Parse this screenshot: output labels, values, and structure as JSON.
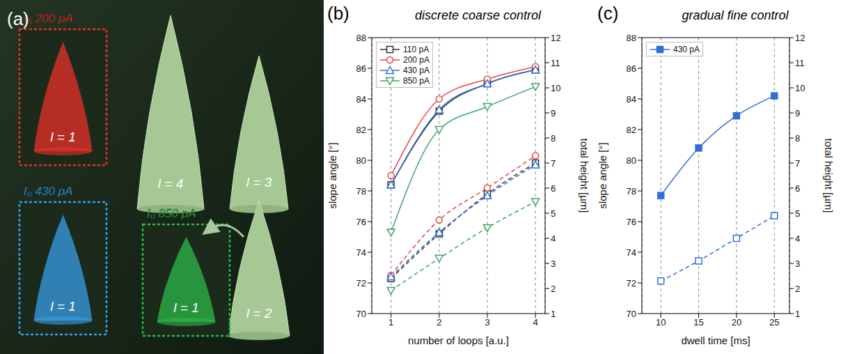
{
  "panel_a": {
    "panel": "(a)",
    "groups": [
      {
        "current": "I₀ 200 pA",
        "color": "#e8302a",
        "cone": "l = 1"
      },
      {
        "current": "I₀ 430 pA",
        "color": "#3a9ee8",
        "cone": "l = 1"
      },
      {
        "current": "I₀ 850 pA",
        "color": "#2eb84a",
        "cone": "l = 1"
      }
    ],
    "cones": [
      "l = 4",
      "l = 3",
      "l = 2"
    ]
  },
  "chart_data": [
    {
      "type": "line",
      "panel": "(b)",
      "title": "discrete coarse control",
      "x_label": "number of loops [a.u.]",
      "y_label": "slope angle [°]",
      "y2_label": "total height [µm]",
      "x": [
        1,
        2,
        3,
        4
      ],
      "xlim": [
        0.6,
        4.2
      ],
      "xticks": [
        1,
        2,
        3,
        4
      ],
      "ylim": [
        70,
        88
      ],
      "yticks": [
        70,
        72,
        74,
        76,
        78,
        80,
        82,
        84,
        86,
        88
      ],
      "y2lim": [
        1,
        12
      ],
      "y2ticks": [
        1,
        2,
        3,
        4,
        5,
        6,
        7,
        8,
        9,
        10,
        11,
        12
      ],
      "grid": true,
      "legend": "top-left",
      "series": [
        {
          "name": "110 pA",
          "color": "#333333",
          "marker": "square",
          "line_style": "solid",
          "values": [
            78.4,
            83.2,
            85.0,
            85.9
          ]
        },
        {
          "name": "200 pA",
          "color": "#e8403a",
          "marker": "circle",
          "line_style": "solid",
          "values": [
            79.0,
            84.0,
            85.3,
            86.1
          ]
        },
        {
          "name": "430 pA",
          "color": "#2f6fd6",
          "marker": "triangle",
          "line_style": "solid",
          "values": [
            78.4,
            83.3,
            85.0,
            85.9
          ]
        },
        {
          "name": "850 pA",
          "color": "#3aa864",
          "marker": "triangle-down",
          "line_style": "solid",
          "values": [
            75.3,
            82.0,
            83.5,
            84.8
          ]
        },
        {
          "name": "110 pA",
          "color": "#333333",
          "marker": "square",
          "line_style": "dashed",
          "axis": "y2",
          "values": [
            2.4,
            4.18,
            5.77,
            7.0
          ]
        },
        {
          "name": "200 pA",
          "color": "#e8403a",
          "marker": "circle",
          "line_style": "dashed",
          "axis": "y2",
          "values": [
            2.53,
            4.73,
            6.01,
            7.29
          ]
        },
        {
          "name": "430 pA",
          "color": "#2f6fd6",
          "marker": "triangle",
          "line_style": "dashed",
          "axis": "y2",
          "values": [
            2.47,
            4.24,
            5.7,
            6.93
          ]
        },
        {
          "name": "850 pA",
          "color": "#3aa864",
          "marker": "triangle-down",
          "line_style": "dashed",
          "axis": "y2",
          "values": [
            1.92,
            3.2,
            4.42,
            5.46
          ]
        }
      ]
    },
    {
      "type": "line",
      "panel": "(c)",
      "title": "gradual fine control",
      "x_label": "dwell time [ms]",
      "y_label": "slope angle [°]",
      "y2_label": "total height [µm]",
      "x": [
        10,
        15,
        20,
        25
      ],
      "xlim": [
        7.5,
        27
      ],
      "xticks": [
        10,
        15,
        20,
        25
      ],
      "ylim": [
        70,
        88
      ],
      "yticks": [
        70,
        72,
        74,
        76,
        78,
        80,
        82,
        84,
        86,
        88
      ],
      "y2lim": [
        1,
        12
      ],
      "y2ticks": [
        1,
        2,
        3,
        4,
        5,
        6,
        7,
        8,
        9,
        10,
        11,
        12
      ],
      "grid": true,
      "legend": "top-left",
      "series": [
        {
          "name": "430 pA",
          "color": "#2f6fd6",
          "marker": "filled-square",
          "line_style": "solid",
          "values": [
            77.7,
            80.8,
            82.9,
            84.2
          ]
        },
        {
          "name": "430 pA",
          "color": "#2f6fd6",
          "marker": "square",
          "line_style": "dashed",
          "axis": "y2",
          "values": [
            2.3,
            3.1,
            4.0,
            4.9
          ]
        }
      ]
    }
  ]
}
